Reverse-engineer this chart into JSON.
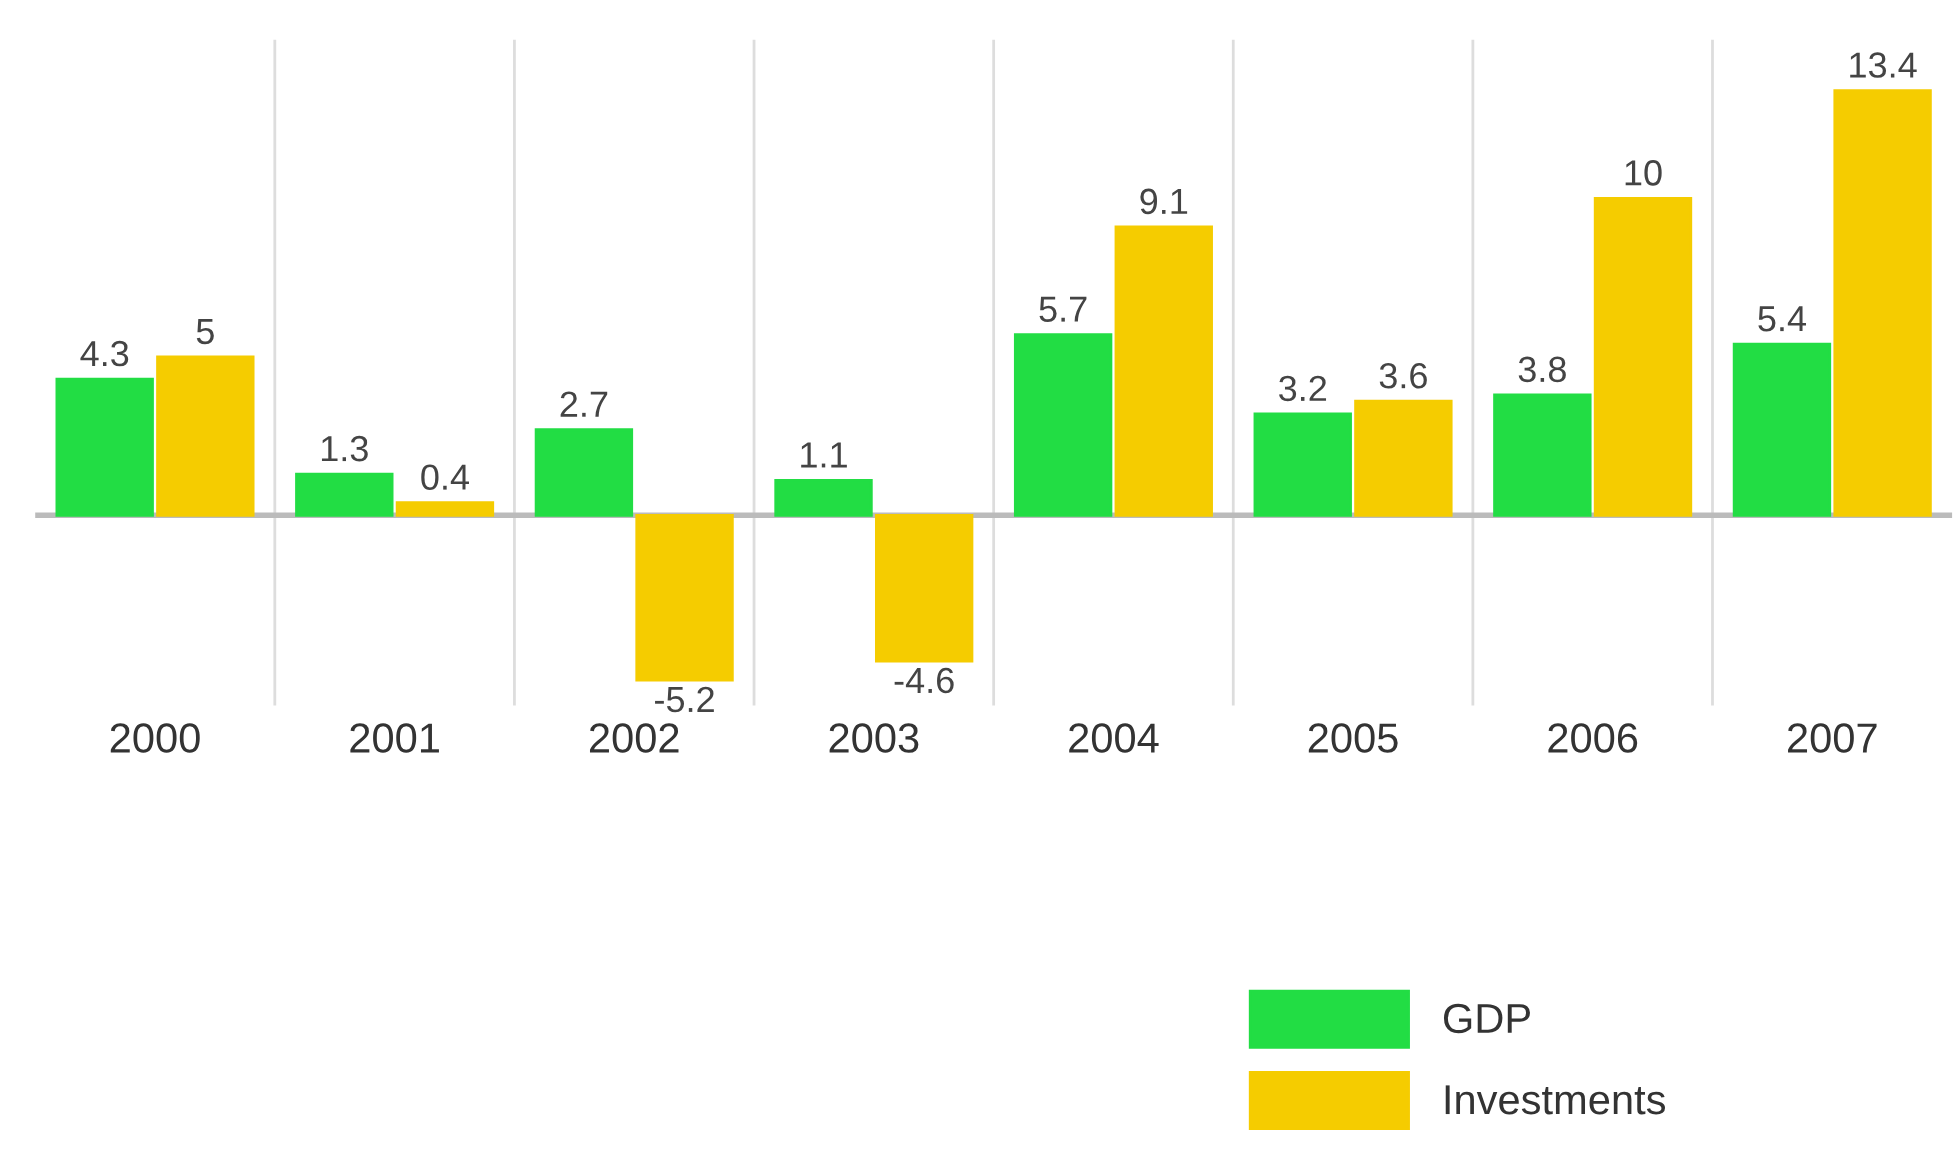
{
  "chart_data": {
    "type": "bar",
    "categories": [
      "2000",
      "2001",
      "2002",
      "2003",
      "2004",
      "2005",
      "2006",
      "2007"
    ],
    "series": [
      {
        "name": "GDP",
        "color": "#22dd44",
        "values": [
          4.3,
          1.3,
          2.7,
          1.1,
          5.7,
          3.2,
          3.8,
          5.4
        ]
      },
      {
        "name": "Investments",
        "color": "#f5cc00",
        "values": [
          5,
          0.4,
          -5.2,
          -4.6,
          9.1,
          3.6,
          10,
          13.4
        ]
      }
    ],
    "ylim": [
      -6,
      15
    ],
    "data_labels": true,
    "grid": "x",
    "legend": "bottom right"
  }
}
